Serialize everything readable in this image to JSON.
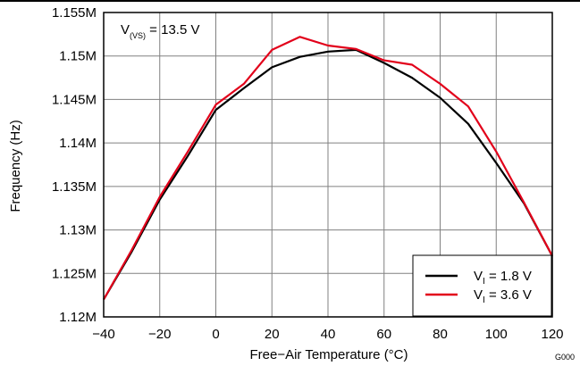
{
  "chart_data": {
    "type": "line",
    "xlabel": "Free−Air Temperature (°C)",
    "ylabel": "Frequency (Hz)",
    "xlim": [
      -40,
      120
    ],
    "ylim": [
      1120000,
      1155000
    ],
    "x_ticks": [
      -40,
      -20,
      0,
      20,
      40,
      60,
      80,
      100,
      120
    ],
    "x_tick_labels": [
      "−40",
      "−20",
      "0",
      "20",
      "40",
      "60",
      "80",
      "100",
      "120"
    ],
    "y_ticks": [
      1120000,
      1125000,
      1130000,
      1135000,
      1140000,
      1145000,
      1150000,
      1155000
    ],
    "y_tick_labels": [
      "1.12M",
      "1.125M",
      "1.13M",
      "1.135M",
      "1.14M",
      "1.145M",
      "1.15M",
      "1.155M"
    ],
    "grid": true,
    "legend_position": "bottom-right",
    "annotation": {
      "base": "V",
      "sub": "(VS)",
      "rest": " = 13.5 V"
    },
    "footnote": "G000",
    "series": [
      {
        "name": "V_I = 1.8 V",
        "legend_base": "V",
        "legend_sub": "I",
        "legend_rest": " = 1.8 V",
        "color": "#000000",
        "x": [
          -40,
          -30,
          -20,
          -10,
          0,
          10,
          20,
          30,
          40,
          50,
          60,
          70,
          80,
          90,
          100,
          110,
          120
        ],
        "y": [
          1122000,
          1127500,
          1133500,
          1138500,
          1143800,
          1146300,
          1148700,
          1149900,
          1150500,
          1150700,
          1149200,
          1147500,
          1145200,
          1142200,
          1137700,
          1133000,
          1127000
        ]
      },
      {
        "name": "V_I = 3.6 V",
        "legend_base": "V",
        "legend_sub": "I",
        "legend_rest": " = 3.6 V",
        "color": "#e2001a",
        "x": [
          -40,
          -30,
          -20,
          -10,
          0,
          10,
          20,
          30,
          40,
          50,
          60,
          70,
          80,
          90,
          100,
          110,
          120
        ],
        "y": [
          1122000,
          1127700,
          1133800,
          1139000,
          1144400,
          1146800,
          1150700,
          1152200,
          1151200,
          1150800,
          1149500,
          1149000,
          1146800,
          1144200,
          1139000,
          1133100,
          1127000
        ]
      }
    ]
  }
}
